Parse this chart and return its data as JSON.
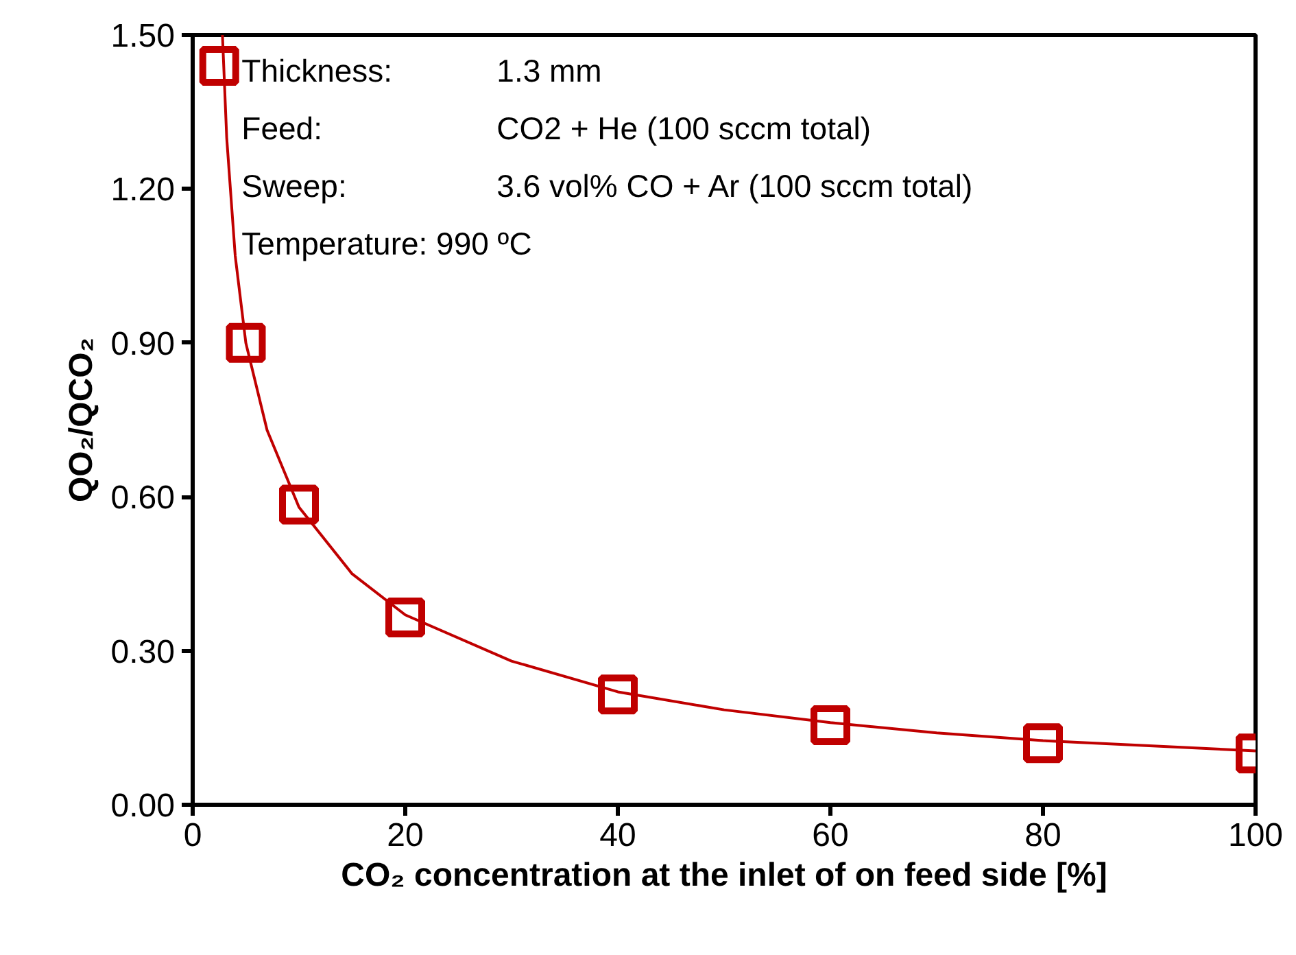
{
  "chart_data": {
    "type": "scatter",
    "xlabel": "CO₂ concentration at the inlet of on feed side [%]",
    "ylabel": "QO₂/QCO₂",
    "xlim": [
      0,
      100
    ],
    "ylim": [
      0,
      1.5
    ],
    "xticks": [
      0,
      20,
      40,
      60,
      80,
      100
    ],
    "yticks": [
      {
        "value": 0,
        "label": "0.00"
      },
      {
        "value": 0.3,
        "label": "0.30"
      },
      {
        "value": 0.6,
        "label": "0.60"
      },
      {
        "value": 0.9,
        "label": "0.90"
      },
      {
        "value": 1.2,
        "label": "1.20"
      },
      {
        "value": 1.5,
        "label": "1.50"
      }
    ],
    "grid": false,
    "marker": "square",
    "series": [
      {
        "color": "#c00000",
        "x": [
          2.5,
          5,
          10,
          20,
          40,
          60,
          80,
          100
        ],
        "values": [
          1.44,
          0.9,
          0.585,
          0.365,
          0.215,
          0.155,
          0.12,
          0.1
        ]
      },
      {
        "type": "line",
        "marker": "none",
        "color": "#c00000",
        "line_style": "solid",
        "x": [
          2.8,
          3.2,
          4,
          5,
          7,
          10,
          15,
          20,
          30,
          40,
          50,
          60,
          70,
          80,
          90,
          100
        ],
        "values": [
          1.5,
          1.3,
          1.07,
          0.9,
          0.73,
          0.58,
          0.45,
          0.37,
          0.28,
          0.22,
          0.185,
          0.16,
          0.14,
          0.125,
          0.115,
          0.105
        ]
      }
    ],
    "annotations": [
      "Thickness:\t1.3 mm",
      "Feed:\tCO2 + He (100 sccm total)",
      "Sweep:\t3.6 vol% CO + Ar (100 sccm total)",
      "Temperature: 990 ºC"
    ]
  }
}
